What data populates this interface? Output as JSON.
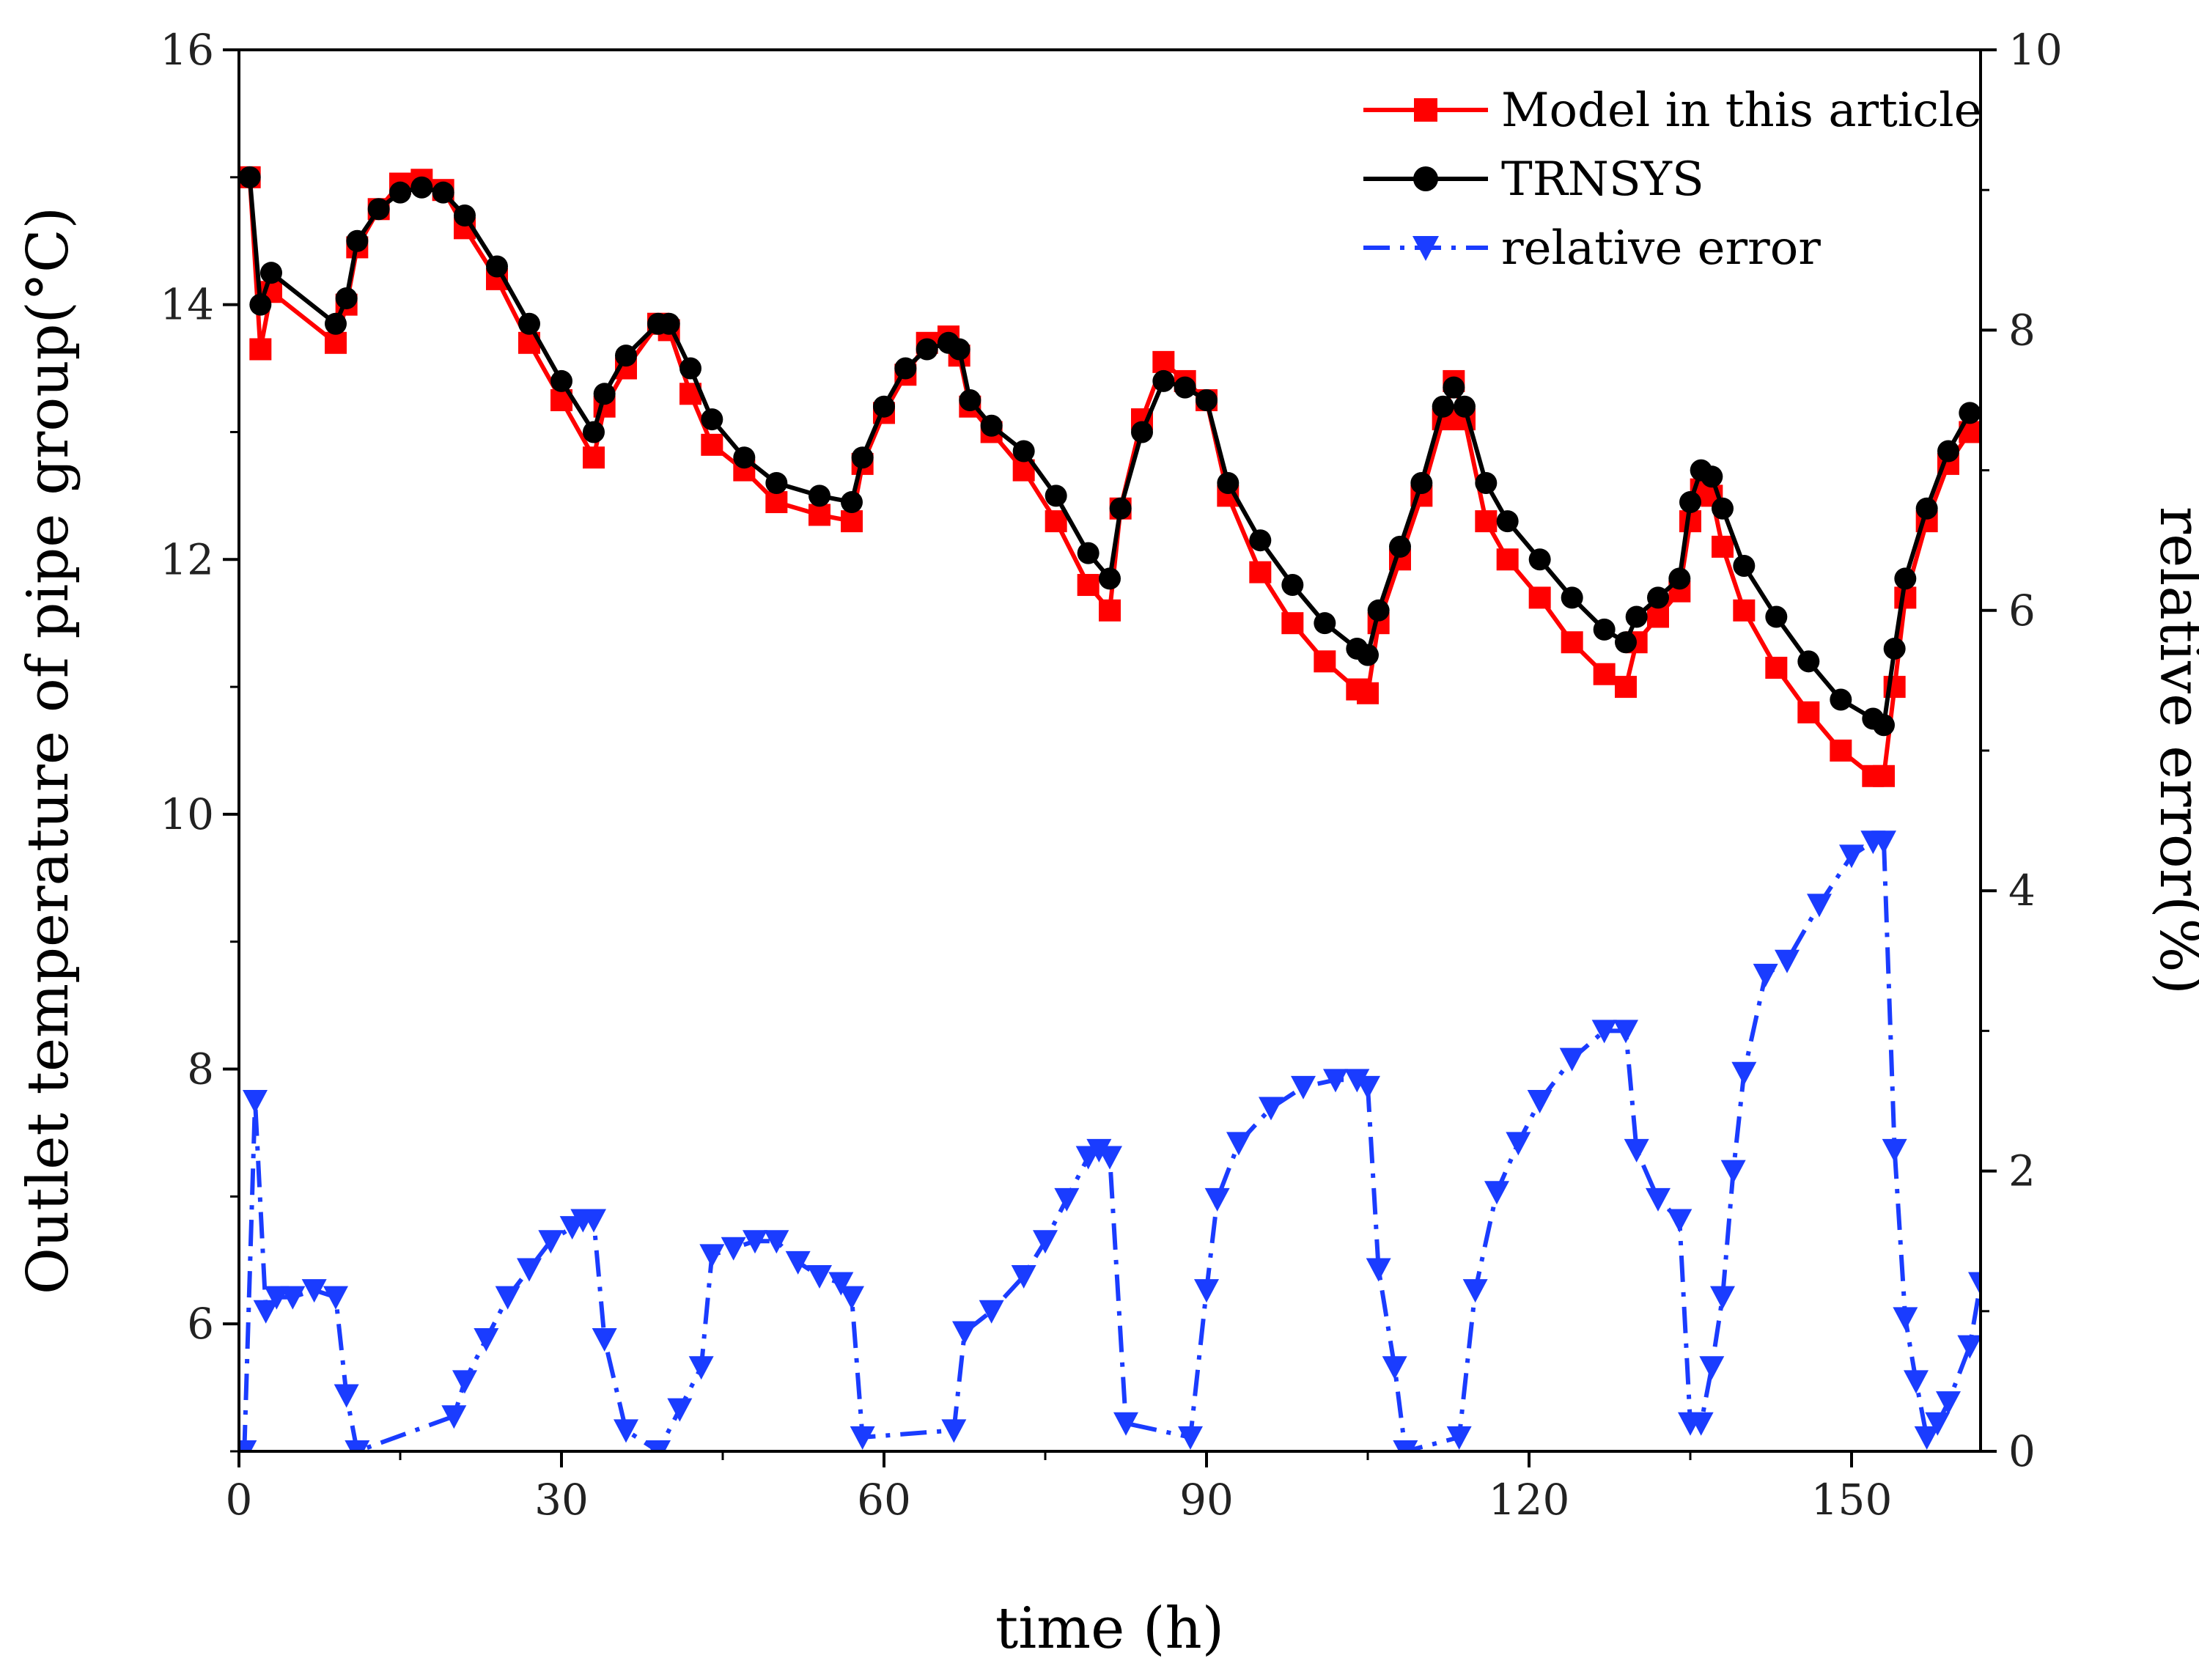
{
  "chart_data": {
    "type": "line",
    "title": "",
    "xlabel": "time (h)",
    "ylabel": "Outlet temperature of pipe group(°C)",
    "y2label": "relative error(%)",
    "xlim": [
      0,
      162
    ],
    "ylim": [
      5,
      16
    ],
    "y2lim": [
      0,
      10
    ],
    "xticks": [
      0,
      30,
      60,
      90,
      120,
      150
    ],
    "yticks": [
      6,
      8,
      10,
      12,
      14,
      16
    ],
    "y2ticks": [
      0,
      2,
      4,
      6,
      8,
      10
    ],
    "legend_position": "top-right",
    "series": [
      {
        "name": "Model in this article",
        "axis": "left",
        "color": "#ff0000",
        "marker": "square",
        "line_style": "solid",
        "x": [
          1,
          2,
          3,
          9,
          10,
          11,
          13,
          15,
          17,
          19,
          21,
          24,
          27,
          30,
          33,
          34,
          36,
          39,
          40,
          42,
          44,
          47,
          50,
          54,
          57,
          58,
          60,
          62,
          64,
          66,
          67,
          68,
          70,
          73,
          76,
          79,
          81,
          82,
          84,
          86,
          88,
          90,
          92,
          95,
          98,
          101,
          104,
          105,
          106,
          108,
          110,
          112,
          113,
          114,
          116,
          118,
          121,
          124,
          127,
          129,
          130,
          132,
          134,
          135,
          136,
          137,
          138,
          140,
          143,
          146,
          149,
          152,
          153,
          154,
          155,
          157,
          159,
          161
        ],
        "values": [
          15.0,
          13.65,
          14.1,
          13.7,
          14.0,
          14.45,
          14.75,
          14.95,
          14.98,
          14.9,
          14.6,
          14.2,
          13.7,
          13.25,
          12.8,
          13.2,
          13.5,
          13.85,
          13.8,
          13.3,
          12.9,
          12.7,
          12.45,
          12.35,
          12.3,
          12.75,
          13.15,
          13.45,
          13.7,
          13.75,
          13.6,
          13.2,
          13.0,
          12.7,
          12.3,
          11.8,
          11.6,
          12.4,
          13.1,
          13.55,
          13.4,
          13.25,
          12.5,
          11.9,
          11.5,
          11.2,
          10.98,
          10.95,
          11.5,
          12.0,
          12.5,
          13.1,
          13.4,
          13.1,
          12.3,
          12.0,
          11.7,
          11.35,
          11.1,
          11.0,
          11.35,
          11.55,
          11.75,
          12.3,
          12.55,
          12.5,
          12.1,
          11.6,
          11.15,
          10.8,
          10.5,
          10.3,
          10.3,
          11.0,
          11.7,
          12.3,
          12.75,
          13.0
        ]
      },
      {
        "name": "TRNSYS",
        "axis": "left",
        "color": "#000000",
        "marker": "circle",
        "line_style": "solid",
        "x": [
          1,
          2,
          3,
          9,
          10,
          11,
          13,
          15,
          17,
          19,
          21,
          24,
          27,
          30,
          33,
          34,
          36,
          39,
          40,
          42,
          44,
          47,
          50,
          54,
          57,
          58,
          60,
          62,
          64,
          66,
          67,
          68,
          70,
          73,
          76,
          79,
          81,
          82,
          84,
          86,
          88,
          90,
          92,
          95,
          98,
          101,
          104,
          105,
          106,
          108,
          110,
          112,
          113,
          114,
          116,
          118,
          121,
          124,
          127,
          129,
          130,
          132,
          134,
          135,
          136,
          137,
          138,
          140,
          143,
          146,
          149,
          152,
          153,
          154,
          155,
          157,
          159,
          161
        ],
        "values": [
          15.0,
          14.0,
          14.25,
          13.85,
          14.05,
          14.5,
          14.75,
          14.88,
          14.92,
          14.88,
          14.7,
          14.3,
          13.85,
          13.4,
          13.0,
          13.3,
          13.6,
          13.85,
          13.85,
          13.5,
          13.1,
          12.8,
          12.6,
          12.5,
          12.45,
          12.8,
          13.2,
          13.5,
          13.65,
          13.7,
          13.65,
          13.25,
          13.05,
          12.85,
          12.5,
          12.05,
          11.85,
          12.4,
          13.0,
          13.4,
          13.35,
          13.25,
          12.6,
          12.15,
          11.8,
          11.5,
          11.3,
          11.25,
          11.6,
          12.1,
          12.6,
          13.2,
          13.35,
          13.2,
          12.6,
          12.3,
          12.0,
          11.7,
          11.45,
          11.35,
          11.55,
          11.7,
          11.85,
          12.45,
          12.7,
          12.65,
          12.4,
          11.95,
          11.55,
          11.2,
          10.9,
          10.75,
          10.7,
          11.3,
          11.85,
          12.4,
          12.85,
          13.15
        ]
      },
      {
        "name": "relative error",
        "axis": "right",
        "color": "#1a3cff",
        "marker": "triangle-down",
        "line_style": "dash-dot",
        "x": [
          0.5,
          1.5,
          2.5,
          3.5,
          5,
          7,
          9,
          10,
          11,
          20,
          21,
          23,
          25,
          27,
          29,
          31,
          32,
          33,
          34,
          36,
          39,
          41,
          43,
          44,
          46,
          48,
          50,
          52,
          54,
          56,
          57,
          58,
          66.5,
          67.5,
          70,
          73,
          75,
          77,
          79,
          80,
          81,
          82.5,
          88.5,
          90,
          91,
          93,
          96,
          99,
          102,
          104,
          105,
          106,
          107.5,
          108.5,
          113.5,
          115,
          117,
          119,
          121,
          124,
          127,
          129,
          130,
          132,
          134,
          135,
          136,
          137,
          138,
          139,
          140,
          142,
          144,
          147,
          150,
          152,
          153,
          154,
          155,
          156,
          157,
          158,
          159,
          161,
          162
        ],
        "values": [
          0.0,
          2.5,
          1.0,
          1.1,
          1.1,
          1.15,
          1.1,
          0.4,
          0.0,
          0.25,
          0.5,
          0.8,
          1.1,
          1.3,
          1.5,
          1.6,
          1.65,
          1.65,
          0.8,
          0.15,
          0.0,
          0.3,
          0.6,
          1.4,
          1.45,
          1.5,
          1.5,
          1.35,
          1.25,
          1.2,
          1.1,
          0.1,
          0.15,
          0.85,
          1.0,
          1.25,
          1.5,
          1.8,
          2.1,
          2.15,
          2.1,
          0.2,
          0.1,
          1.15,
          1.8,
          2.2,
          2.45,
          2.6,
          2.65,
          2.65,
          2.6,
          1.3,
          0.6,
          0.0,
          0.1,
          1.15,
          1.85,
          2.2,
          2.5,
          2.8,
          3.0,
          3.0,
          2.15,
          1.8,
          1.65,
          0.2,
          0.2,
          0.6,
          1.1,
          2.0,
          2.7,
          3.4,
          3.5,
          3.9,
          4.25,
          4.35,
          4.35,
          2.15,
          0.95,
          0.5,
          0.1,
          0.2,
          0.35,
          0.75,
          1.2
        ]
      }
    ]
  }
}
